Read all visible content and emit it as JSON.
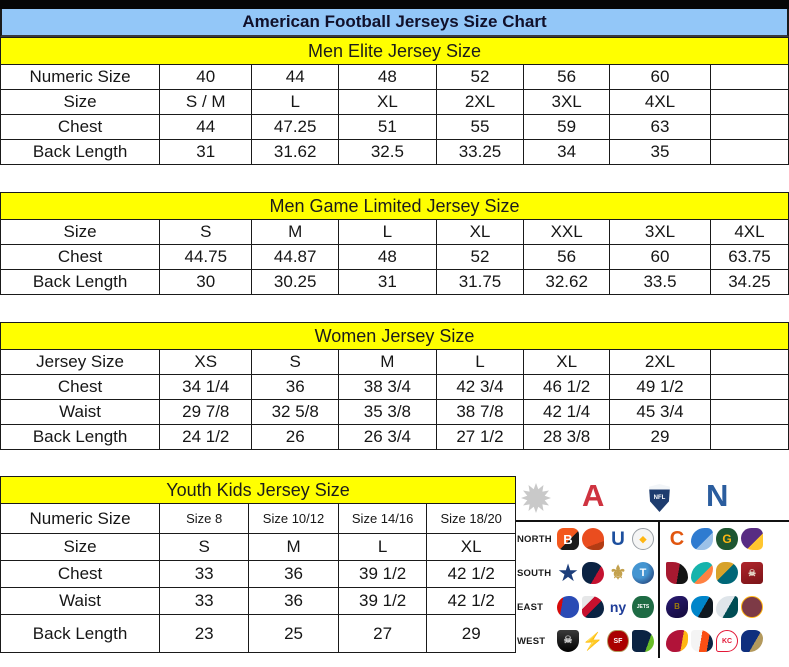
{
  "title": "American Football Jerseys Size Chart",
  "colors": {
    "title_bg": "#93c7f8",
    "section_bg": "#ffff00",
    "border": "#1a1a1a",
    "afc_red": "#cf3340",
    "nfc_blue": "#2b5d9e"
  },
  "tables": [
    {
      "id": "men-elite",
      "section": "Men Elite Jersey Size",
      "rows": [
        {
          "label": "Numeric Size",
          "cells": [
            "40",
            "44",
            "48",
            "52",
            "56",
            "60",
            ""
          ]
        },
        {
          "label": "Size",
          "cells": [
            "S / M",
            "L",
            "XL",
            "2XL",
            "3XL",
            "4XL",
            ""
          ]
        },
        {
          "label": "Chest",
          "cells": [
            "44",
            "47.25",
            "51",
            "55",
            "59",
            "63",
            ""
          ]
        },
        {
          "label": "Back Length",
          "cells": [
            "31",
            "31.62",
            "32.5",
            "33.25",
            "34",
            "35",
            ""
          ]
        }
      ]
    },
    {
      "id": "men-game-limited",
      "section": "Men Game Limited Jersey Size",
      "rows": [
        {
          "label": "Size",
          "cells": [
            "S",
            "M",
            "L",
            "XL",
            "XXL",
            "3XL",
            "4XL"
          ]
        },
        {
          "label": "Chest",
          "cells": [
            "44.75",
            "44.87",
            "48",
            "52",
            "56",
            "60",
            "63.75"
          ]
        },
        {
          "label": "Back Length",
          "cells": [
            "30",
            "30.25",
            "31",
            "31.75",
            "32.62",
            "33.5",
            "34.25"
          ]
        }
      ]
    },
    {
      "id": "women",
      "section": "Women Jersey Size",
      "rows": [
        {
          "label": "Jersey Size",
          "cells": [
            "XS",
            "S",
            "M",
            "L",
            "XL",
            "2XL",
            ""
          ]
        },
        {
          "label": "Chest",
          "cells": [
            "34 1/4",
            "36",
            "38 3/4",
            "42 3/4",
            "46 1/2",
            "49 1/2",
            ""
          ]
        },
        {
          "label": "Waist",
          "cells": [
            "29 7/8",
            "32 5/8",
            "35 3/8",
            "38 7/8",
            "42 1/4",
            "45 3/4",
            ""
          ]
        },
        {
          "label": "Back Length",
          "cells": [
            "24 1/2",
            "26",
            "26 3/4",
            "27 1/2",
            "28 3/8",
            "29",
            ""
          ]
        }
      ]
    },
    {
      "id": "youth-kids",
      "section": "Youth Kids Jersey Size",
      "rows": [
        {
          "label": "Numeric Size",
          "small": true,
          "cells": [
            "Size 8",
            "Size 10/12",
            "Size 14/16",
            "Size 18/20"
          ]
        },
        {
          "label": "Size",
          "cells": [
            "S",
            "M",
            "L",
            "XL"
          ]
        },
        {
          "label": "Chest",
          "cells": [
            "33",
            "36",
            "39 1/2",
            "42 1/2"
          ]
        },
        {
          "label": "Waist",
          "cells": [
            "33",
            "36",
            "39 1/2",
            "42 1/2"
          ]
        },
        {
          "label": "Back Length",
          "cells": [
            "23",
            "25",
            "27",
            "29"
          ]
        }
      ]
    }
  ],
  "logos": {
    "header": {
      "afc_letter": "A",
      "nfl_label": "NFL",
      "nfc_letter": "N"
    },
    "divisions": [
      {
        "label": "NORTH",
        "afc": [
          {
            "name": "bengals-logo",
            "glyph": "B",
            "fg": "#ffffff",
            "bg": "linear-gradient(135deg,#f3581d 55%,#1a1a1a 55%)",
            "r": "30%",
            "fs": 13
          },
          {
            "name": "browns-logo",
            "glyph": "",
            "bg": "linear-gradient(160deg,#ea4d1f 70%,#b33c14 70%)",
            "r": "50% 50% 25% 50%"
          },
          {
            "name": "colts-logo",
            "glyph": "U",
            "fg": "#1d4f9e",
            "fs": 19
          },
          {
            "name": "steelers-logo",
            "glyph": "◆",
            "fg": "#ffb612",
            "bg": "#f5f5f5",
            "border": "1.5px solid #9aa0a6",
            "r": "50%",
            "fs": 9
          }
        ],
        "nfc": [
          {
            "name": "bears-logo",
            "glyph": "C",
            "fg": "#e1560f",
            "fs": 20
          },
          {
            "name": "lions-logo",
            "glyph": "",
            "bg": "linear-gradient(135deg,#2f7bd0 60%,#9cc1e8 60%)",
            "r": "70% 30% 55% 45%"
          },
          {
            "name": "packers-logo",
            "glyph": "G",
            "fg": "#ffb612",
            "bg": "#1e5631",
            "r": "50% / 60%",
            "fs": 12
          },
          {
            "name": "vikings-logo",
            "glyph": "",
            "bg": "linear-gradient(135deg,#582c83 62%,#ffc62f 62%)",
            "r": "60% 40% 30% 70%"
          }
        ]
      },
      {
        "label": "SOUTH",
        "afc": [
          {
            "name": "cowboys-star-logo",
            "glyph": "★",
            "fg": "#1d3e7b",
            "fs": 21
          },
          {
            "name": "texans-logo",
            "glyph": "",
            "bg": "linear-gradient(120deg,#0b2343 62%,#c41230 62%)",
            "r": "40% 60% 50% 50%"
          },
          {
            "name": "saints-logo",
            "glyph": "⚜",
            "fg": "#c3a14d",
            "fs": 19
          },
          {
            "name": "titans-logo",
            "glyph": "T",
            "fg": "#ffffff",
            "bg": "radial-gradient(circle at 35% 35%,#4495d1 40%,#1b2a5e)",
            "r": "50%",
            "fs": 11
          }
        ],
        "nfc": [
          {
            "name": "falcons-logo",
            "glyph": "",
            "bg": "linear-gradient(100deg,#a71930 55%,#141414 55%)",
            "r": "10% 90% 40% 60%"
          },
          {
            "name": "dolphins-logo",
            "glyph": "",
            "bg": "linear-gradient(135deg,#16b3ac 55%,#ff8243 55%)",
            "r": "70% 30% 70% 30%"
          },
          {
            "name": "jaguars-logo",
            "glyph": "",
            "bg": "linear-gradient(135deg,#d7a22a 45%,#006778 45%)",
            "r": "45% 55% 60% 40%"
          },
          {
            "name": "buccaneers-logo",
            "glyph": "☠",
            "fg": "#e8e0cf",
            "bg": "linear-gradient(160deg,#b0262c,#7a1418)",
            "r": "15%",
            "fs": 9
          }
        ]
      },
      {
        "label": "EAST",
        "afc": [
          {
            "name": "bills-logo",
            "glyph": "",
            "bg": "linear-gradient(100deg,#d50a0a 25%,#2a4bb5 25%)",
            "r": "55% 45% 50% 50%"
          },
          {
            "name": "patriots-logo",
            "glyph": "",
            "bg": "linear-gradient(135deg,#e6e7e8 30%,#c8102e 30% 55%,#0b2343 55%)",
            "r": "20% 80% 60% 40%"
          },
          {
            "name": "giants-logo",
            "glyph": "ny",
            "fg": "#1f3d99",
            "fs": 14
          },
          {
            "name": "jets-logo",
            "glyph": "JETS",
            "fg": "#ffffff",
            "bg": "#1e6b44",
            "r": "50% / 62%",
            "fs": 5
          }
        ],
        "nfc": [
          {
            "name": "ravens-logo",
            "glyph": "B",
            "fg": "#9e7c0c",
            "bg": "linear-gradient(150deg,#2a1a73,#120a3a)",
            "r": "65% 35% 50% 50%",
            "fs": 8
          },
          {
            "name": "panthers-logo",
            "glyph": "",
            "bg": "linear-gradient(120deg,#0085ca 55%,#101820 55%)",
            "r": "60% 40% 40% 60%"
          },
          {
            "name": "eagles-logo",
            "glyph": "",
            "bg": "linear-gradient(120deg,#dfe5ea 55%,#004c54 55%)",
            "r": "80% 20% 50% 50%"
          },
          {
            "name": "redskins-logo",
            "glyph": "",
            "bg": "#7d3a46",
            "border": "1.5px solid #ffb612",
            "r": "50%"
          }
        ]
      },
      {
        "label": "WEST",
        "afc": [
          {
            "name": "raiders-logo",
            "glyph": "☠",
            "fg": "#cfcfcf",
            "bg": "linear-gradient(180deg,#3a3a3a,#000000)",
            "r": "15% 15% 50% 50%",
            "fs": 10
          },
          {
            "name": "chargers-bolt-logo",
            "glyph": "⚡",
            "fg": "#f2a900",
            "fs": 17
          },
          {
            "name": "49ers-logo",
            "glyph": "SF",
            "fg": "#ffffff",
            "bg": "#aa0000",
            "border": "1.5px solid #b3995d",
            "r": "50% / 62%",
            "fs": 7
          },
          {
            "name": "seahawks-logo",
            "glyph": "",
            "bg": "linear-gradient(110deg,#0b2343 70%,#69be28 70%)",
            "r": "20% 80% 70% 30%"
          }
        ],
        "nfc": [
          {
            "name": "cardinals-logo",
            "glyph": "",
            "bg": "linear-gradient(100deg,#b11339 70%,#ffb612 70%)",
            "r": "70% 30% 60% 40%"
          },
          {
            "name": "broncos-logo",
            "glyph": "",
            "bg": "linear-gradient(100deg,#f4f4f4 45%,#fb4f14 45% 75%,#0a2343 75%)",
            "r": "20% 80% 50% 50%"
          },
          {
            "name": "chiefs-logo",
            "glyph": "KC",
            "fg": "#e31837",
            "bg": "#ffffff",
            "border": "1.5px solid #e31837",
            "r": "50% 50% 50% 12%",
            "fs": 7
          },
          {
            "name": "rams-logo",
            "glyph": "",
            "bg": "linear-gradient(120deg,#0f2f7e 60%,#b3995d 60%)",
            "r": "50% 50% 80% 20%"
          }
        ]
      }
    ]
  }
}
